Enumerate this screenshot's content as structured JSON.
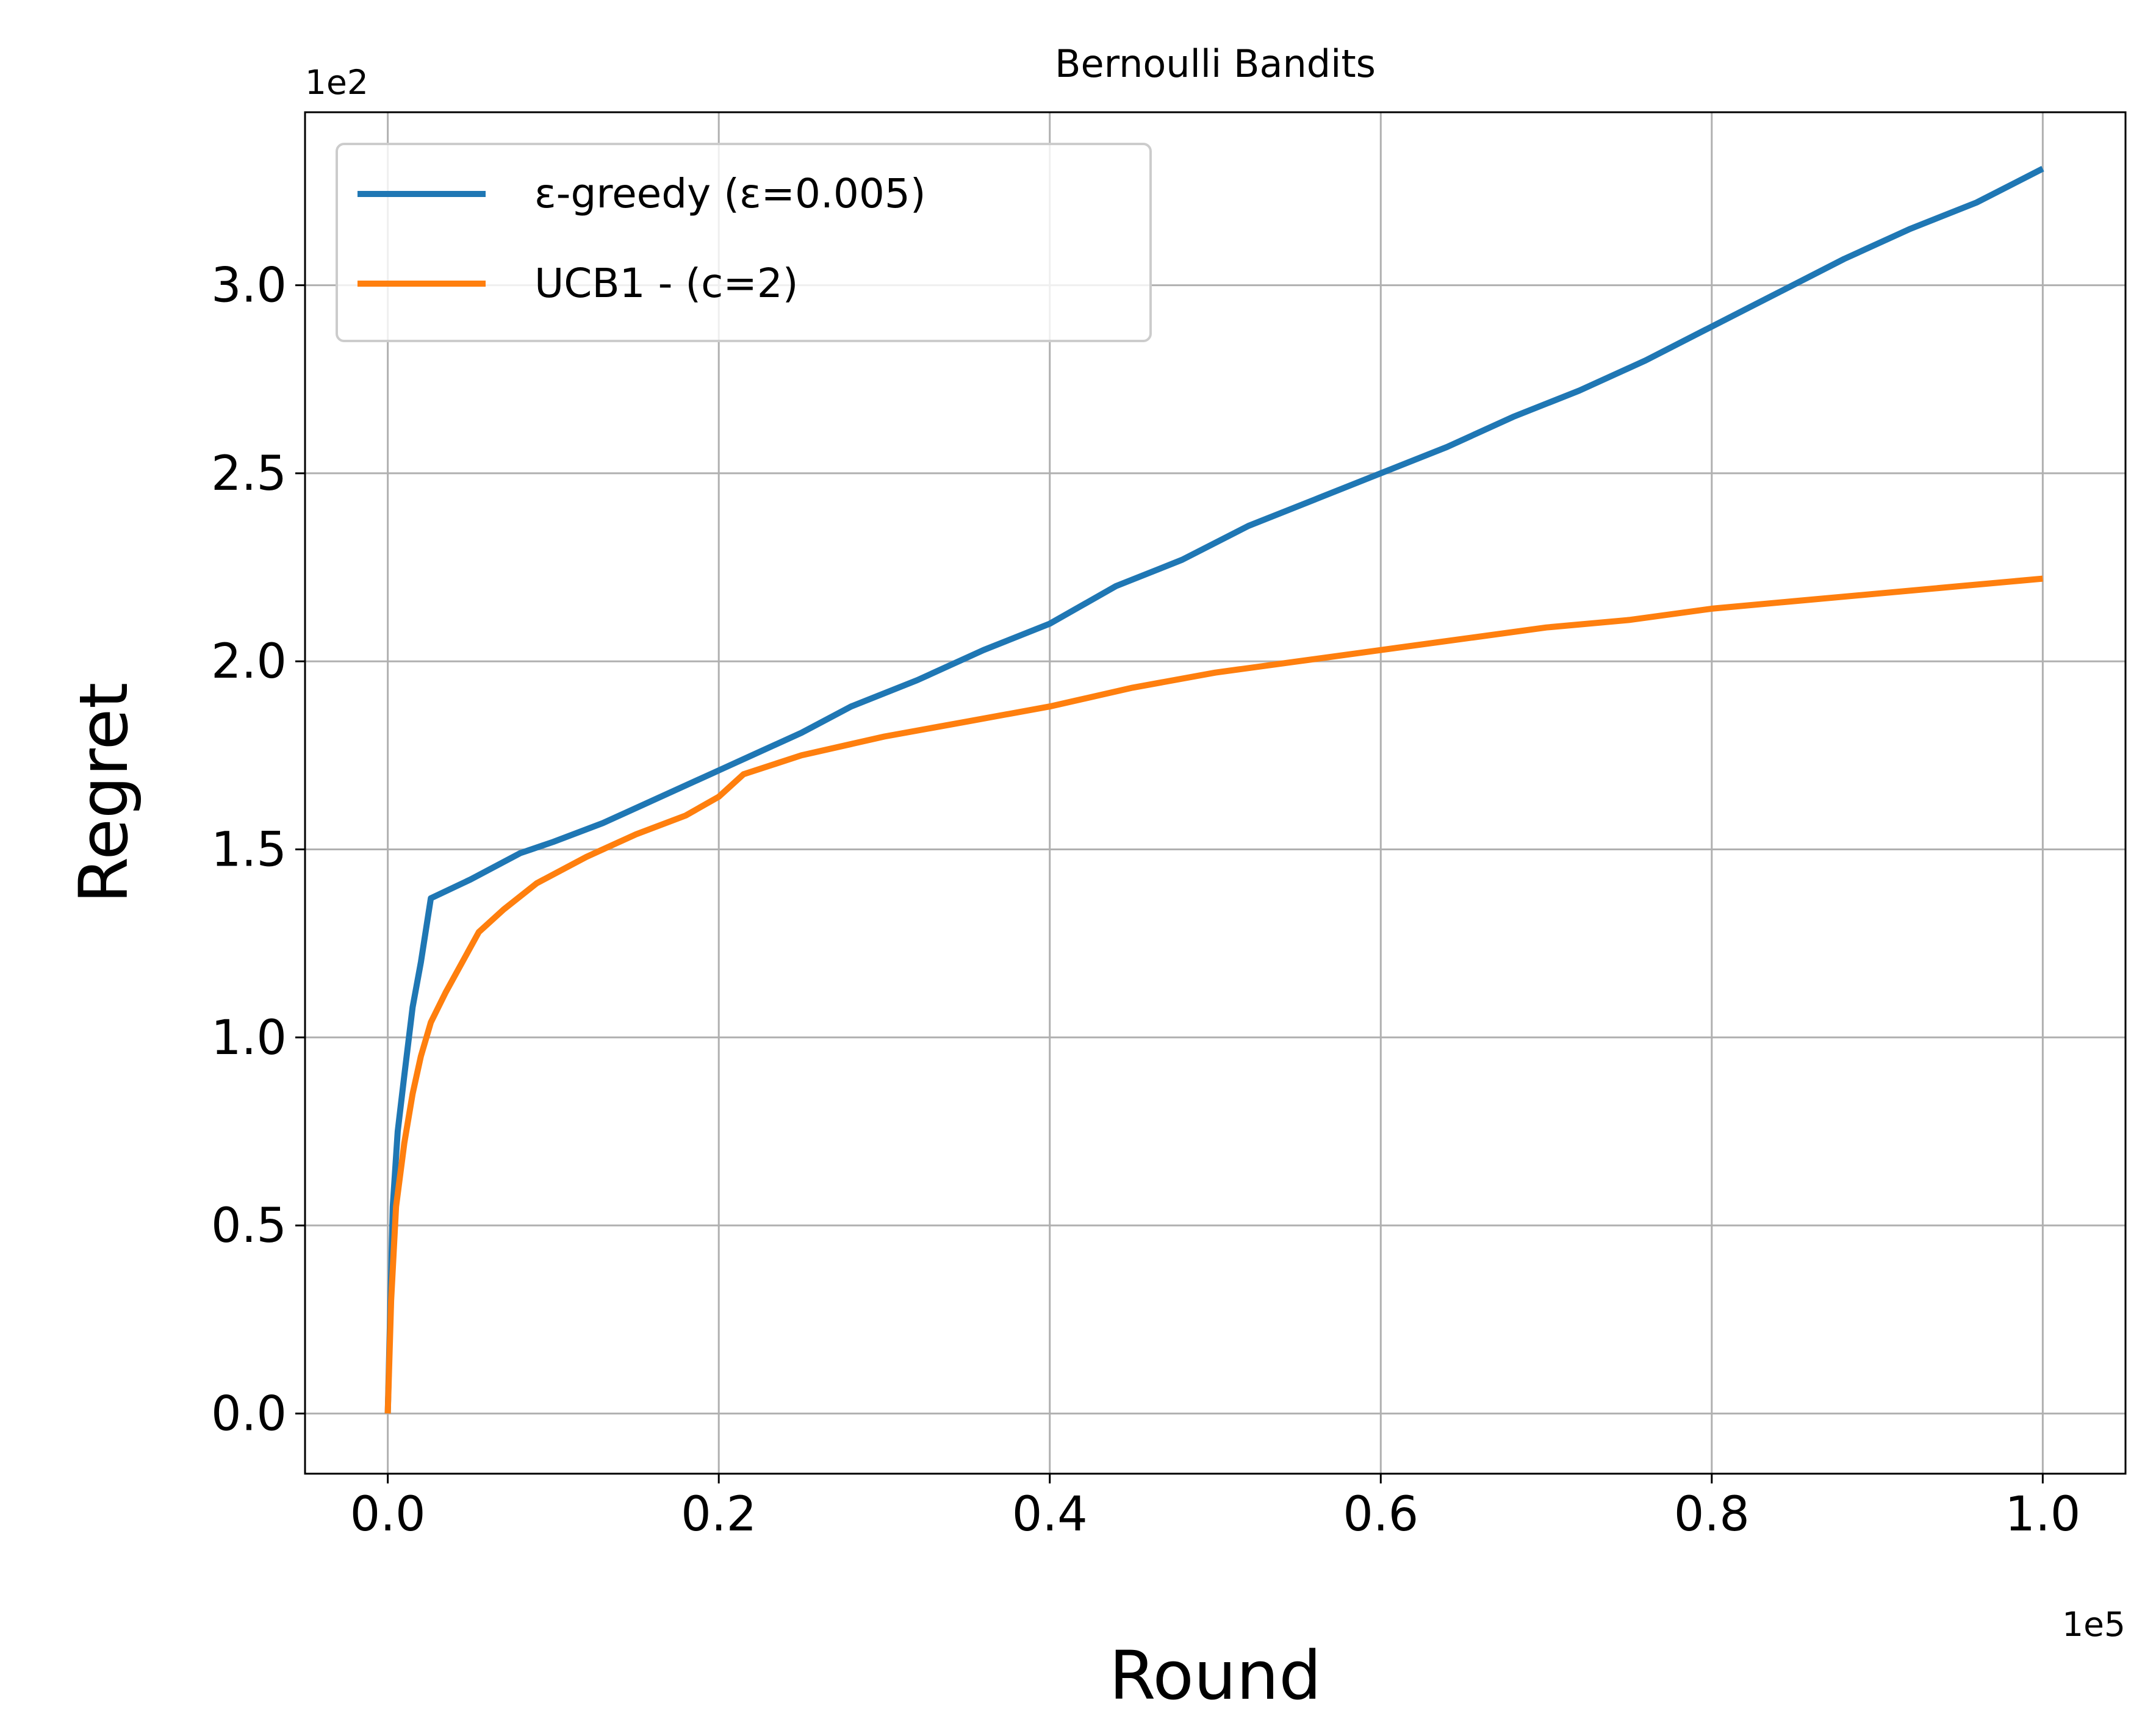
{
  "chart_data": {
    "type": "line",
    "title": "Bernoulli Bandits",
    "xlabel": "Round",
    "ylabel": "Regret",
    "x_offset_label": "1e5",
    "y_offset_label": "1e2",
    "xlim": [
      -5000,
      105000
    ],
    "ylim": [
      -16,
      346
    ],
    "x_ticks": [
      {
        "value": 0,
        "label": "0.0"
      },
      {
        "value": 20000,
        "label": "0.2"
      },
      {
        "value": 40000,
        "label": "0.4"
      },
      {
        "value": 60000,
        "label": "0.6"
      },
      {
        "value": 80000,
        "label": "0.8"
      },
      {
        "value": 100000,
        "label": "1.0"
      }
    ],
    "y_ticks": [
      {
        "value": 0,
        "label": "0.0"
      },
      {
        "value": 50,
        "label": "0.5"
      },
      {
        "value": 100,
        "label": "1.0"
      },
      {
        "value": 150,
        "label": "1.5"
      },
      {
        "value": 200,
        "label": "2.0"
      },
      {
        "value": 250,
        "label": "2.5"
      },
      {
        "value": 300,
        "label": "3.0"
      }
    ],
    "grid": true,
    "legend_position": "upper-left",
    "series": [
      {
        "name": "ε-greedy (ε=0.005)",
        "color": "#1f77b4",
        "points": [
          [
            0,
            0
          ],
          [
            300,
            55
          ],
          [
            600,
            75
          ],
          [
            1000,
            90
          ],
          [
            1500,
            108
          ],
          [
            2000,
            120
          ],
          [
            2600,
            137
          ],
          [
            5000,
            142
          ],
          [
            8000,
            149
          ],
          [
            10000,
            152
          ],
          [
            13000,
            157
          ],
          [
            16000,
            163
          ],
          [
            20000,
            171
          ],
          [
            22000,
            175
          ],
          [
            25000,
            181
          ],
          [
            28000,
            188
          ],
          [
            32000,
            195
          ],
          [
            36000,
            203
          ],
          [
            40000,
            210
          ],
          [
            44000,
            220
          ],
          [
            48000,
            227
          ],
          [
            52000,
            236
          ],
          [
            56000,
            243
          ],
          [
            60000,
            250
          ],
          [
            64000,
            257
          ],
          [
            68000,
            265
          ],
          [
            72000,
            272
          ],
          [
            76000,
            280
          ],
          [
            80000,
            289
          ],
          [
            84000,
            298
          ],
          [
            88000,
            307
          ],
          [
            92000,
            315
          ],
          [
            96000,
            322
          ],
          [
            100000,
            331
          ]
        ]
      },
      {
        "name": "UCB1 - (c=2)",
        "color": "#ff7f0e",
        "points": [
          [
            0,
            0
          ],
          [
            200,
            30
          ],
          [
            500,
            55
          ],
          [
            1000,
            72
          ],
          [
            1500,
            85
          ],
          [
            2000,
            95
          ],
          [
            2600,
            104
          ],
          [
            3500,
            112
          ],
          [
            4500,
            120
          ],
          [
            5500,
            128
          ],
          [
            7000,
            134
          ],
          [
            9000,
            141
          ],
          [
            12000,
            148
          ],
          [
            15000,
            154
          ],
          [
            18000,
            159
          ],
          [
            20000,
            164
          ],
          [
            21500,
            170
          ],
          [
            25000,
            175
          ],
          [
            30000,
            180
          ],
          [
            35000,
            184
          ],
          [
            40000,
            188
          ],
          [
            45000,
            193
          ],
          [
            50000,
            197
          ],
          [
            55000,
            200
          ],
          [
            60000,
            203
          ],
          [
            65000,
            206
          ],
          [
            70000,
            209
          ],
          [
            75000,
            211
          ],
          [
            80000,
            214
          ],
          [
            85000,
            216
          ],
          [
            90000,
            218
          ],
          [
            95000,
            220
          ],
          [
            100000,
            222
          ]
        ]
      }
    ]
  }
}
